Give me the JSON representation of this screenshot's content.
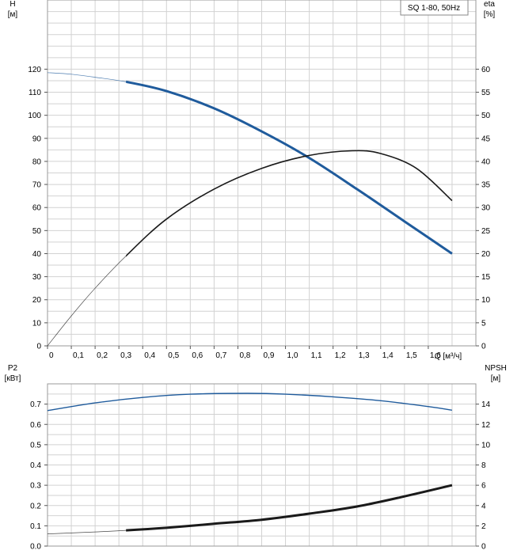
{
  "chart_data": [
    {
      "type": "line",
      "title": "SQ 1-80, 50Hz",
      "xlabel": "Q [м³/ч]",
      "x_ticks": [
        "0",
        "0,1",
        "0,2",
        "0,3",
        "0,4",
        "0,5",
        "0,6",
        "0,7",
        "0,8",
        "0,9",
        "1,0",
        "1,1",
        "1,2",
        "1,3",
        "1,4",
        "1,5",
        "1,6"
      ],
      "xlim": [
        0,
        1.8
      ],
      "y_left": {
        "label_top": "H",
        "label_unit": "[м]",
        "ticks": [
          "0",
          "10",
          "20",
          "30",
          "40",
          "50",
          "60",
          "70",
          "80",
          "90",
          "100",
          "110",
          "120"
        ],
        "lim": [
          0,
          150
        ]
      },
      "y_right": {
        "label_top": "eta",
        "label_unit": "[%]",
        "ticks": [
          "0",
          "5",
          "10",
          "15",
          "20",
          "25",
          "30",
          "35",
          "40",
          "45",
          "50",
          "55",
          "60"
        ],
        "lim": [
          0,
          75
        ]
      },
      "series": [
        {
          "name": "H (head)",
          "axis": "left",
          "color": "#1f5b9c",
          "x": [
            0,
            0.1,
            0.2,
            0.33,
            0.5,
            0.7,
            0.9,
            1.1,
            1.3,
            1.5,
            1.7
          ],
          "y": [
            118.5,
            117.8,
            116.5,
            114.5,
            110.5,
            103,
            93,
            81.5,
            68,
            54,
            40
          ],
          "valid_from": 0.33
        },
        {
          "name": "eta (efficiency)",
          "axis": "right",
          "color": "#1a1a1a",
          "x": [
            0,
            0.1,
            0.2,
            0.33,
            0.5,
            0.7,
            0.9,
            1.1,
            1.28,
            1.4,
            1.55,
            1.7
          ],
          "y": [
            0,
            6.5,
            12.5,
            19.5,
            27.5,
            34,
            38.5,
            41.3,
            42.3,
            41.7,
            38.5,
            31.5
          ],
          "valid_from": 0.33
        }
      ]
    },
    {
      "type": "line",
      "y_left": {
        "label_top": "P2",
        "label_unit": "[кВт]",
        "ticks": [
          "0.0",
          "0.1",
          "0.2",
          "0.3",
          "0.4",
          "0.5",
          "0.6",
          "0.7"
        ],
        "lim": [
          0,
          0.8
        ]
      },
      "y_right": {
        "label_top": "NPSH",
        "label_unit": "[м]",
        "ticks": [
          "0",
          "2",
          "4",
          "6",
          "8",
          "10",
          "12",
          "14"
        ],
        "lim": [
          0,
          16
        ]
      },
      "xlim": [
        0,
        1.8
      ],
      "series": [
        {
          "name": "P2 (power)",
          "axis": "left",
          "color": "#1f5b9c",
          "x": [
            0,
            0.2,
            0.4,
            0.6,
            0.84,
            1.0,
            1.2,
            1.4,
            1.6,
            1.7
          ],
          "y": [
            0.668,
            0.706,
            0.733,
            0.749,
            0.753,
            0.749,
            0.736,
            0.717,
            0.688,
            0.67
          ]
        },
        {
          "name": "NPSH",
          "axis": "right",
          "color": "#1a1a1a",
          "x": [
            0,
            0.2,
            0.33,
            0.5,
            0.7,
            0.9,
            1.1,
            1.3,
            1.5,
            1.7
          ],
          "y": [
            1.2,
            1.4,
            1.55,
            1.8,
            2.2,
            2.6,
            3.2,
            3.9,
            4.9,
            6.0
          ],
          "valid_from": 0.33
        }
      ]
    }
  ]
}
